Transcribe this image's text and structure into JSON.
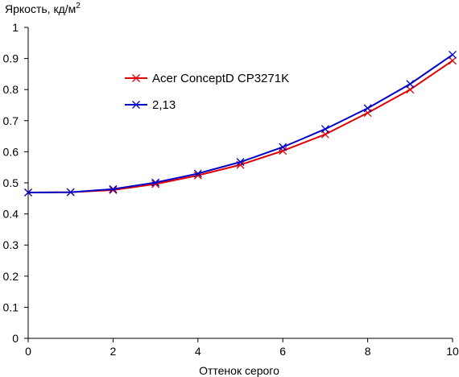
{
  "chart_data": {
    "type": "line",
    "title": "",
    "ylabel": "Яркость, кд/м",
    "ylabel_superscript": "2",
    "xlabel": "Оттенок серого",
    "xlim": [
      0,
      10
    ],
    "ylim": [
      0,
      1
    ],
    "x_ticks": [
      0,
      2,
      4,
      6,
      8,
      10
    ],
    "y_ticks": [
      0,
      0.1,
      0.2,
      0.3,
      0.4,
      0.5,
      0.6,
      0.7,
      0.8,
      0.9,
      1
    ],
    "x_tick_labels": [
      "0",
      "2",
      "4",
      "6",
      "8",
      "10"
    ],
    "y_tick_labels": [
      "0",
      "0.1",
      "0.2",
      "0.3",
      "0.4",
      "0.5",
      "0.6",
      "0.7",
      "0.8",
      "0.9",
      "1"
    ],
    "grid": false,
    "legend_position": "top-left",
    "x": [
      0,
      1,
      2,
      3,
      4,
      5,
      6,
      7,
      8,
      9,
      10
    ],
    "series": [
      {
        "name": "Acer ConceptD CP3271K",
        "color": "#e00000",
        "marker": "x",
        "values": [
          0.469,
          0.47,
          0.477,
          0.496,
          0.524,
          0.558,
          0.603,
          0.656,
          0.725,
          0.8,
          0.893
        ]
      },
      {
        "name": "2,13",
        "color": "#0000c8",
        "marker": "x",
        "values": [
          0.469,
          0.47,
          0.48,
          0.501,
          0.53,
          0.567,
          0.615,
          0.673,
          0.74,
          0.818,
          0.912
        ]
      }
    ]
  }
}
